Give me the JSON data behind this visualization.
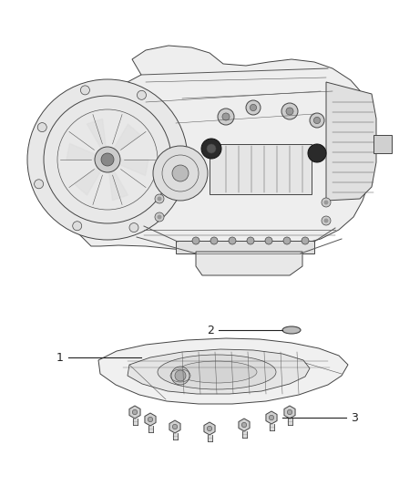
{
  "background_color": "#ffffff",
  "fig_width": 4.38,
  "fig_height": 5.33,
  "dpi": 100,
  "label1_text": "1",
  "label2_text": "2",
  "label3_text": "3",
  "label_fontsize": 9,
  "label_color": "#222222",
  "line_color": "#555555",
  "part_edge_color": "#444444",
  "part_fill_color": "#f0f0f0",
  "bolt_color": "#333333"
}
